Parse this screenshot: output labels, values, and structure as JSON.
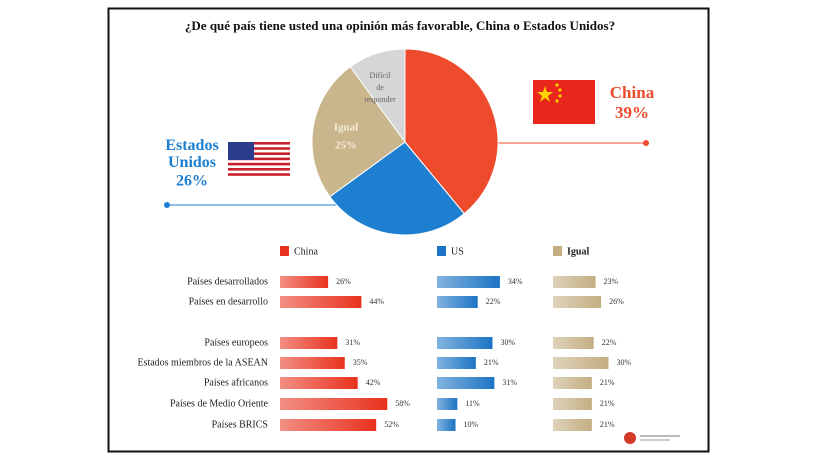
{
  "chart_data": [
    {
      "type": "pie",
      "title": "¿De qué país tiene usted una opinión más favorable, China o Estados Unidos?",
      "categories": [
        "China",
        "Estados Unidos",
        "Igual",
        "Difícil de responder"
      ],
      "values": [
        39,
        26,
        25,
        10
      ],
      "value_labels": [
        "39%",
        "26%",
        "25%",
        null
      ],
      "colors": [
        "#ee4a2c",
        "#1e7fd0",
        "#c9b68c",
        "#d6d6d6"
      ]
    },
    {
      "type": "bar",
      "categories": [
        "Países desarrollados",
        "Países en desarrollo",
        "Países europeos",
        "Estados miembros de la ASEAN",
        "Países africanos",
        "Países de Medio Oriente",
        "Países BRICS"
      ],
      "series": [
        {
          "name": "China",
          "color": "#e8321e",
          "values": [
            26,
            44,
            31,
            35,
            42,
            58,
            52
          ],
          "value_labels": [
            "26%",
            "44%",
            "31%",
            "35%",
            "42%",
            "58%",
            "52%"
          ]
        },
        {
          "name": "US",
          "color": "#1c74c4",
          "values": [
            34,
            22,
            30,
            21,
            31,
            11,
            10
          ],
          "value_labels": [
            "34%",
            "22%",
            "30%",
            "21%",
            "31%",
            "11%",
            "10%"
          ]
        },
        {
          "name": "Igual",
          "color": "#c4ae82",
          "values": [
            23,
            26,
            22,
            30,
            21,
            21,
            21
          ],
          "value_labels": [
            "23%",
            "26%",
            "22%",
            "30%",
            "21%",
            "21%",
            "21%"
          ]
        }
      ]
    }
  ]
}
